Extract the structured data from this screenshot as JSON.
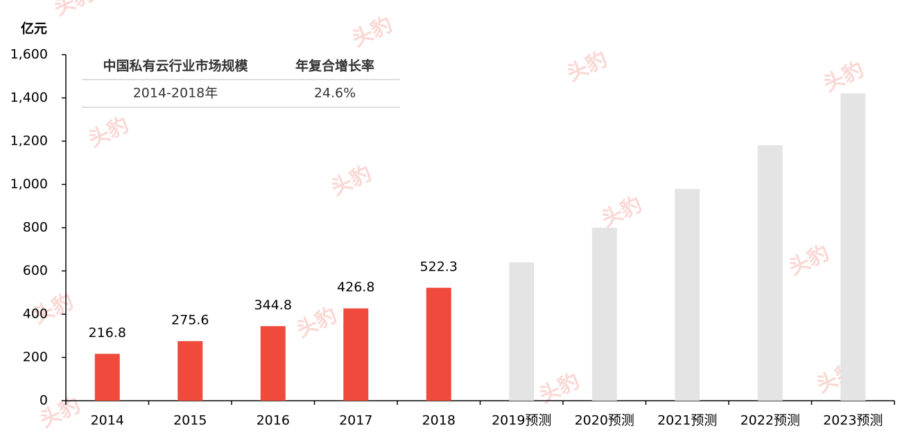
{
  "chart_data": {
    "type": "bar",
    "y_label": "亿元",
    "watermark": "头豹",
    "categories": [
      "2014",
      "2015",
      "2016",
      "2017",
      "2018",
      "2019预测",
      "2020预测",
      "2021预测",
      "2022预测",
      "2023预测"
    ],
    "series": [
      {
        "color": "#f04a3c",
        "data_labels": true,
        "values": [
          216.8,
          275.6,
          344.8,
          426.8,
          522.3,
          null,
          null,
          null,
          null,
          null
        ]
      },
      {
        "color": "#e4e4e4",
        "data_labels": false,
        "values": [
          null,
          null,
          null,
          null,
          null,
          640,
          800,
          979,
          1181,
          1421
        ]
      }
    ],
    "ylim": [
      0,
      1600
    ],
    "yticks": [
      0,
      200,
      400,
      600,
      800,
      {
        "value": 1000,
        "label": "1,000"
      },
      {
        "value": 1200,
        "label": "1,200"
      },
      {
        "value": 1400,
        "label": "1,400"
      },
      {
        "value": 1600,
        "label": "1,600"
      }
    ],
    "table": {
      "header": [
        "中国私有云行业市场规模",
        "年复合增长率"
      ],
      "rows": [
        [
          "2014-2018年",
          "24.6%"
        ]
      ]
    }
  }
}
